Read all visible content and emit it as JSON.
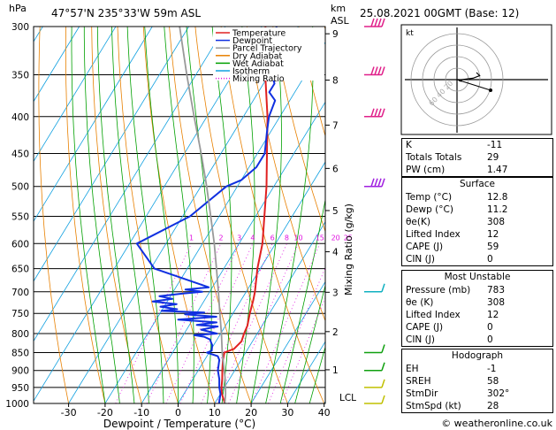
{
  "header": {
    "location": "47°57'N  235°33'W  59m  ASL",
    "datetime": "25.08.2021  00GMT  (Base: 12)",
    "p_unit": "hPa",
    "km_label": "km",
    "asl_label": "ASL",
    "xlabel": "Dewpoint / Temperature (°C)",
    "ylabel": "Mixing Ratio (g/kg)",
    "lcl": "LCL",
    "credit": "© weatheronline.co.uk"
  },
  "legend": [
    {
      "label": "Temperature",
      "color": "#e02020",
      "dash": "solid"
    },
    {
      "label": "Dewpoint",
      "color": "#1030e0",
      "dash": "solid"
    },
    {
      "label": "Parcel Trajectory",
      "color": "#999999",
      "dash": "solid"
    },
    {
      "label": "Dry Adiabat",
      "color": "#e88000",
      "dash": "solid"
    },
    {
      "label": "Wet Adiabat",
      "color": "#00a000",
      "dash": "solid"
    },
    {
      "label": "Isotherm",
      "color": "#10a0e0",
      "dash": "solid"
    },
    {
      "label": "Mixing Ratio",
      "color": "#e010e0",
      "dash": "dotted"
    }
  ],
  "chart_data": {
    "type": "line",
    "title": "Skew-T log-P sounding",
    "xlabel": "Dewpoint / Temperature (°C)",
    "ylabel": "hPa",
    "x_ticks": [
      -30,
      -20,
      -10,
      0,
      10,
      20,
      30,
      40
    ],
    "x_range": [
      -40,
      40
    ],
    "pressure_levels": [
      300,
      350,
      400,
      450,
      500,
      550,
      600,
      650,
      700,
      750,
      800,
      850,
      900,
      950,
      1000
    ],
    "km_ticks": [
      {
        "km": "1",
        "p": 898
      },
      {
        "km": "2",
        "p": 795
      },
      {
        "km": "3",
        "p": 701
      },
      {
        "km": "4",
        "p": 616
      },
      {
        "km": "5",
        "p": 540
      },
      {
        "km": "6",
        "p": 472
      },
      {
        "km": "7",
        "p": 411
      },
      {
        "km": "8",
        "p": 356
      },
      {
        "km": "9",
        "p": 307
      }
    ],
    "mixing_ratio_labels": [
      "1",
      "2",
      "3",
      "4",
      "6",
      "8",
      "10",
      "15",
      "20",
      "25"
    ],
    "mixing_ratio_values": [
      1,
      2,
      3,
      4,
      6,
      8,
      10,
      15,
      20,
      25
    ],
    "series": [
      {
        "name": "Temperature",
        "color": "#e02020",
        "points": [
          [
            1000,
            12.8
          ],
          [
            970,
            10.4
          ],
          [
            950,
            9.2
          ],
          [
            925,
            8
          ],
          [
            900,
            6.6
          ],
          [
            870,
            5
          ],
          [
            850,
            4.2
          ],
          [
            840,
            6.2
          ],
          [
            820,
            7
          ],
          [
            800,
            6.4
          ],
          [
            780,
            6
          ],
          [
            750,
            4.6
          ],
          [
            720,
            3.4
          ],
          [
            700,
            2.4
          ],
          [
            650,
            -0.8
          ],
          [
            600,
            -3.6
          ],
          [
            550,
            -7.6
          ],
          [
            500,
            -12
          ],
          [
            450,
            -17.4
          ],
          [
            400,
            -23.4
          ],
          [
            350,
            -31
          ],
          [
            300,
            -39
          ]
        ]
      },
      {
        "name": "Dewpoint",
        "color": "#1030e0",
        "points": [
          [
            1000,
            11.2
          ],
          [
            970,
            10
          ],
          [
            950,
            8.6
          ],
          [
            925,
            7.2
          ],
          [
            900,
            5.4
          ],
          [
            870,
            4
          ],
          [
            860,
            3
          ],
          [
            850,
            -0.6
          ],
          [
            845,
            0.4
          ],
          [
            830,
            -0.4
          ],
          [
            815,
            -2
          ],
          [
            808,
            -4
          ],
          [
            804,
            -7
          ],
          [
            800,
            -1
          ],
          [
            790,
            -6
          ],
          [
            782,
            -2
          ],
          [
            778,
            -8
          ],
          [
            772,
            -3
          ],
          [
            765,
            -14
          ],
          [
            758,
            -4
          ],
          [
            752,
            -13
          ],
          [
            748,
            -8
          ],
          [
            744,
            -20
          ],
          [
            740,
            -16
          ],
          [
            734,
            -21
          ],
          [
            728,
            -17
          ],
          [
            722,
            -24
          ],
          [
            716,
            -19
          ],
          [
            710,
            -23
          ],
          [
            704,
            -17
          ],
          [
            700,
            -12
          ],
          [
            695,
            -17
          ],
          [
            690,
            -11
          ],
          [
            650,
            -29
          ],
          [
            600,
            -38
          ],
          [
            550,
            -28
          ],
          [
            500,
            -23
          ],
          [
            490,
            -20
          ],
          [
            470,
            -18
          ],
          [
            450,
            -18
          ],
          [
            420,
            -21
          ],
          [
            400,
            -23
          ],
          [
            380,
            -24
          ],
          [
            370,
            -27
          ],
          [
            360,
            -27
          ],
          [
            350,
            -29
          ],
          [
            330,
            -31
          ],
          [
            310,
            -34
          ],
          [
            300,
            -36
          ]
        ]
      },
      {
        "name": "Parcel Trajectory",
        "color": "#999999",
        "points": [
          [
            1000,
            12.8
          ],
          [
            970,
            11.4
          ],
          [
            950,
            10.3
          ],
          [
            920,
            8.5
          ],
          [
            900,
            7.1
          ],
          [
            850,
            3.6
          ],
          [
            800,
            0.2
          ],
          [
            750,
            -3.6
          ],
          [
            700,
            -7.6
          ],
          [
            650,
            -12
          ],
          [
            600,
            -16.8
          ],
          [
            550,
            -22.3
          ],
          [
            500,
            -28.4
          ],
          [
            450,
            -35.4
          ],
          [
            400,
            -43.5
          ],
          [
            350,
            -52.5
          ],
          [
            300,
            -62.5
          ]
        ]
      }
    ]
  },
  "hodograph": {
    "unit_label": "kt",
    "ring_labels": [
      "20",
      "40",
      "60"
    ]
  },
  "indices": [
    {
      "label": "K",
      "value": "-11"
    },
    {
      "label": "Totals Totals",
      "value": "29"
    },
    {
      "label": "PW (cm)",
      "value": "1.47"
    }
  ],
  "surface": {
    "title": "Surface",
    "rows": [
      {
        "label": "Temp (°C)",
        "value": "12.8"
      },
      {
        "label": "Dewp (°C)",
        "value": "11.2"
      },
      {
        "label": "θe(K)",
        "value": "308"
      },
      {
        "label": "Lifted Index",
        "value": "12"
      },
      {
        "label": "CAPE (J)",
        "value": "59"
      },
      {
        "label": "CIN (J)",
        "value": "0"
      }
    ]
  },
  "most_unstable": {
    "title": "Most Unstable",
    "rows": [
      {
        "label": "Pressure (mb)",
        "value": "783"
      },
      {
        "label": "θe (K)",
        "value": "308"
      },
      {
        "label": "Lifted Index",
        "value": "12"
      },
      {
        "label": "CAPE (J)",
        "value": "0"
      },
      {
        "label": "CIN (J)",
        "value": "0"
      }
    ]
  },
  "hodograph_table": {
    "title": "Hodograph",
    "rows": [
      {
        "label": "EH",
        "value": "-1"
      },
      {
        "label": "SREH",
        "value": "58"
      },
      {
        "label": "StmDir",
        "value": "302°"
      },
      {
        "label": "StmSpd (kt)",
        "value": "28"
      }
    ]
  },
  "wind_barbs": [
    {
      "p": 300,
      "dir": 250,
      "spd": 45
    },
    {
      "p": 350,
      "dir": 250,
      "spd": 45
    },
    {
      "p": 400,
      "dir": 260,
      "spd": 50
    },
    {
      "p": 500,
      "dir": 265,
      "spd": 35
    },
    {
      "p": 700,
      "dir": 270,
      "spd": 10
    },
    {
      "p": 850,
      "dir": 280,
      "spd": 10
    },
    {
      "p": 900,
      "dir": 290,
      "spd": 10
    },
    {
      "p": 950,
      "dir": 300,
      "spd": 5
    },
    {
      "p": 1000,
      "dir": 300,
      "spd": 5
    }
  ]
}
